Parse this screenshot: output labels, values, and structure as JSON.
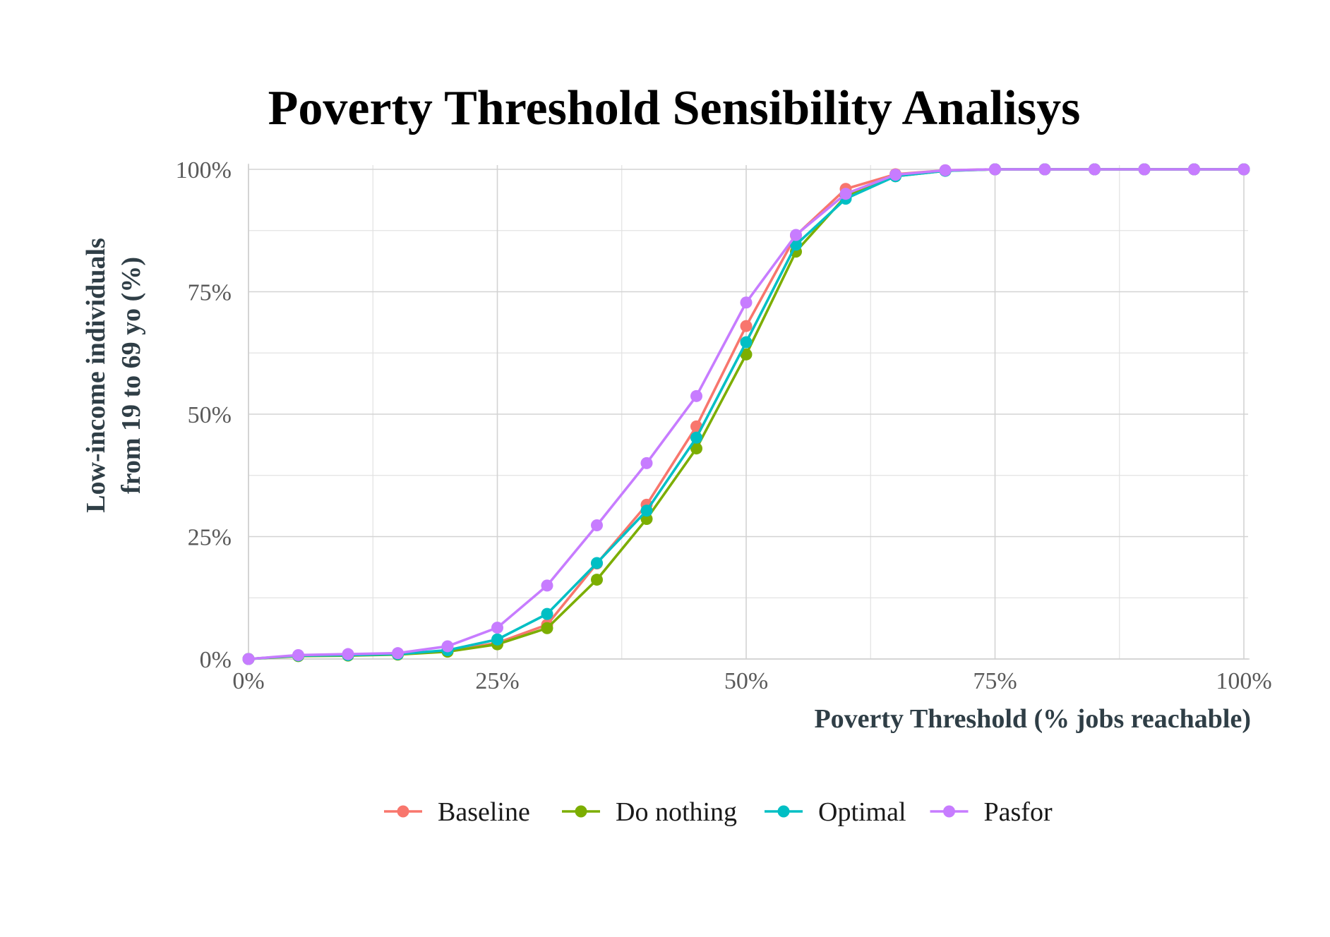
{
  "chart_data": {
    "type": "line",
    "title": "Poverty Threshold Sensibility Analisys",
    "xlabel": "Poverty Threshold (% jobs reachable)",
    "ylabel_lines": [
      "Low-income individuals",
      "from 19 to 69 yo (%)"
    ],
    "xlim": [
      0,
      100
    ],
    "ylim": [
      0,
      100
    ],
    "x_ticks": [
      "0%",
      "25%",
      "50%",
      "75%",
      "100%"
    ],
    "y_ticks": [
      "0%",
      "25%",
      "50%",
      "75%",
      "100%"
    ],
    "grid": true,
    "legend_position": "bottom",
    "x": [
      0,
      5,
      10,
      15,
      20,
      25,
      30,
      35,
      40,
      45,
      50,
      55,
      60,
      65,
      70,
      75,
      80,
      85,
      90,
      95,
      100
    ],
    "series": [
      {
        "name": "Baseline",
        "color": "#F8766D",
        "values": [
          0,
          0.7,
          0.8,
          1.0,
          1.6,
          3.3,
          7.0,
          19.5,
          31.5,
          47.5,
          68.0,
          86.5,
          96.0,
          99.0,
          99.8,
          100,
          100,
          100,
          100,
          100,
          100
        ]
      },
      {
        "name": "Do nothing",
        "color": "#7CAE00",
        "values": [
          0,
          0.6,
          0.7,
          0.9,
          1.5,
          3.0,
          6.3,
          16.2,
          28.6,
          43.0,
          62.2,
          83.2,
          94.5,
          98.6,
          99.7,
          100,
          100,
          100,
          100,
          100,
          100
        ]
      },
      {
        "name": "Optimal",
        "color": "#00BFC4",
        "values": [
          0,
          0.7,
          0.8,
          1.0,
          1.8,
          4.0,
          9.2,
          19.6,
          30.3,
          45.2,
          64.7,
          84.6,
          94.0,
          98.6,
          99.7,
          100,
          100,
          100,
          100,
          100,
          100
        ]
      },
      {
        "name": "Pasfor",
        "color": "#C77CFF",
        "values": [
          0,
          0.8,
          1.0,
          1.2,
          2.6,
          6.4,
          15.0,
          27.3,
          40.0,
          53.7,
          72.8,
          86.6,
          95.0,
          98.9,
          99.8,
          100,
          100,
          100,
          100,
          100,
          100
        ]
      }
    ]
  }
}
